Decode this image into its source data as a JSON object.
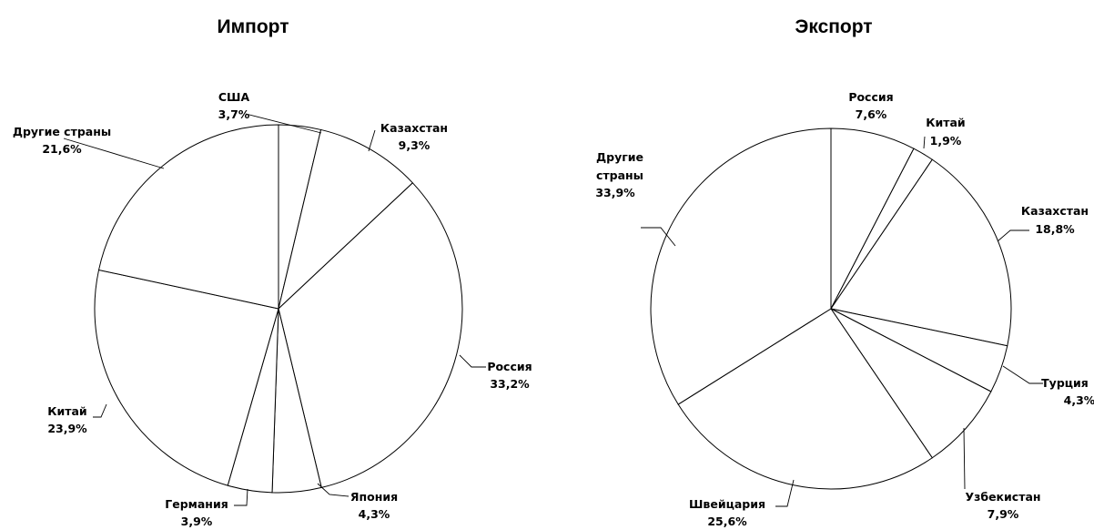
{
  "chart_data": [
    {
      "type": "pie",
      "title": "Импорт",
      "slices": [
        {
          "label": "США",
          "value": 3.7,
          "value_label": "3,7%"
        },
        {
          "label": "Казахстан",
          "value": 9.3,
          "value_label": "9,3%"
        },
        {
          "label": "Россия",
          "value": 33.2,
          "value_label": "33,2%"
        },
        {
          "label": "Япония",
          "value": 4.3,
          "value_label": "4,3%"
        },
        {
          "label": "Германия",
          "value": 3.9,
          "value_label": "3,9%"
        },
        {
          "label": "Китай",
          "value": 23.9,
          "value_label": "23,9%"
        },
        {
          "label": "Другие страны",
          "value": 21.6,
          "value_label": "21,6%"
        }
      ],
      "colors": {
        "fill": "#ffffff",
        "stroke": "#000000"
      }
    },
    {
      "type": "pie",
      "title": "Экспорт",
      "slices": [
        {
          "label": "Россия",
          "value": 7.6,
          "value_label": "7,6%"
        },
        {
          "label": "Китай",
          "value": 1.9,
          "value_label": "1,9%"
        },
        {
          "label": "Казахстан",
          "value": 18.8,
          "value_label": "18,8%"
        },
        {
          "label": "Турция",
          "value": 4.3,
          "value_label": "4,3%"
        },
        {
          "label": "Узбекистан",
          "value": 7.9,
          "value_label": "7,9%"
        },
        {
          "label": "Швейцария",
          "value": 25.6,
          "value_label": "25,6%"
        },
        {
          "label": "Другие страны",
          "value": 33.9,
          "value_label": "33,9%"
        }
      ],
      "colors": {
        "fill": "#ffffff",
        "stroke": "#000000"
      }
    }
  ]
}
